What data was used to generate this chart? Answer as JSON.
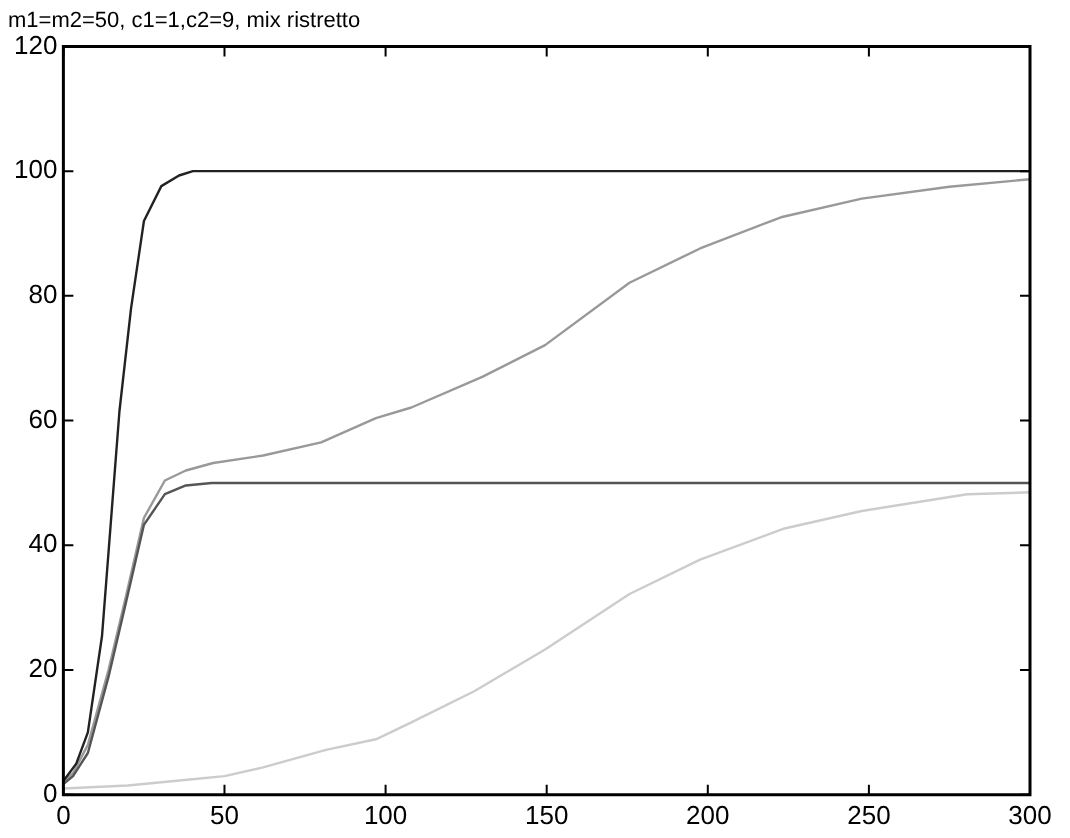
{
  "chart_data": {
    "type": "line",
    "title": "m1=m2=50, c1=1,c2=9, mix ristretto",
    "xlim": [
      0,
      300
    ],
    "xticks": [
      0,
      50,
      100,
      150,
      200,
      250,
      300
    ],
    "ylim": [
      0,
      120
    ],
    "yticks": [
      0,
      20,
      40,
      60,
      80,
      100,
      120
    ],
    "grid": false,
    "legend": false,
    "marker": "none",
    "line_style": "solid",
    "series": [
      {
        "color": "#222222",
        "x": [
          0,
          4,
          7.6,
          12,
          17.4,
          21,
          25,
          30.4,
          35.9,
          40.2,
          60,
          300
        ],
        "values": [
          2.2,
          5,
          10,
          25.5,
          61.5,
          78,
          92,
          97.6,
          99.3,
          100,
          100,
          100
        ]
      },
      {
        "color": "#555555",
        "x": [
          0,
          3,
          7.6,
          14,
          19.5,
          25,
          31.5,
          38,
          46,
          60,
          300
        ],
        "values": [
          1.7,
          3,
          6.7,
          18.9,
          31,
          43.3,
          48.2,
          49.6,
          50,
          50,
          50
        ]
      },
      {
        "color": "#999999",
        "x": [
          0,
          3,
          7.6,
          14,
          19.5,
          25,
          31.5,
          38,
          46.5,
          62,
          80,
          97,
          108,
          130,
          149.5,
          175.7,
          197.6,
          222.7,
          247.8,
          275,
          300
        ],
        "values": [
          2,
          3.5,
          8,
          20,
          32,
          44.4,
          50.4,
          52,
          53.2,
          54.4,
          56.5,
          60.4,
          62.1,
          67,
          72.1,
          82.1,
          87.6,
          92.6,
          95.6,
          97.5,
          98.7
        ]
      },
      {
        "color": "#cccccc",
        "x": [
          0,
          20,
          40,
          50,
          62,
          81.5,
          97,
          108,
          127.5,
          149.5,
          175.7,
          197.6,
          223.8,
          247.8,
          280.5,
          300
        ],
        "values": [
          1,
          1.5,
          2.5,
          3,
          4.4,
          7.2,
          8.9,
          11.6,
          16.6,
          23.3,
          32.2,
          37.7,
          42.7,
          45.5,
          48.2,
          48.5
        ]
      }
    ]
  }
}
